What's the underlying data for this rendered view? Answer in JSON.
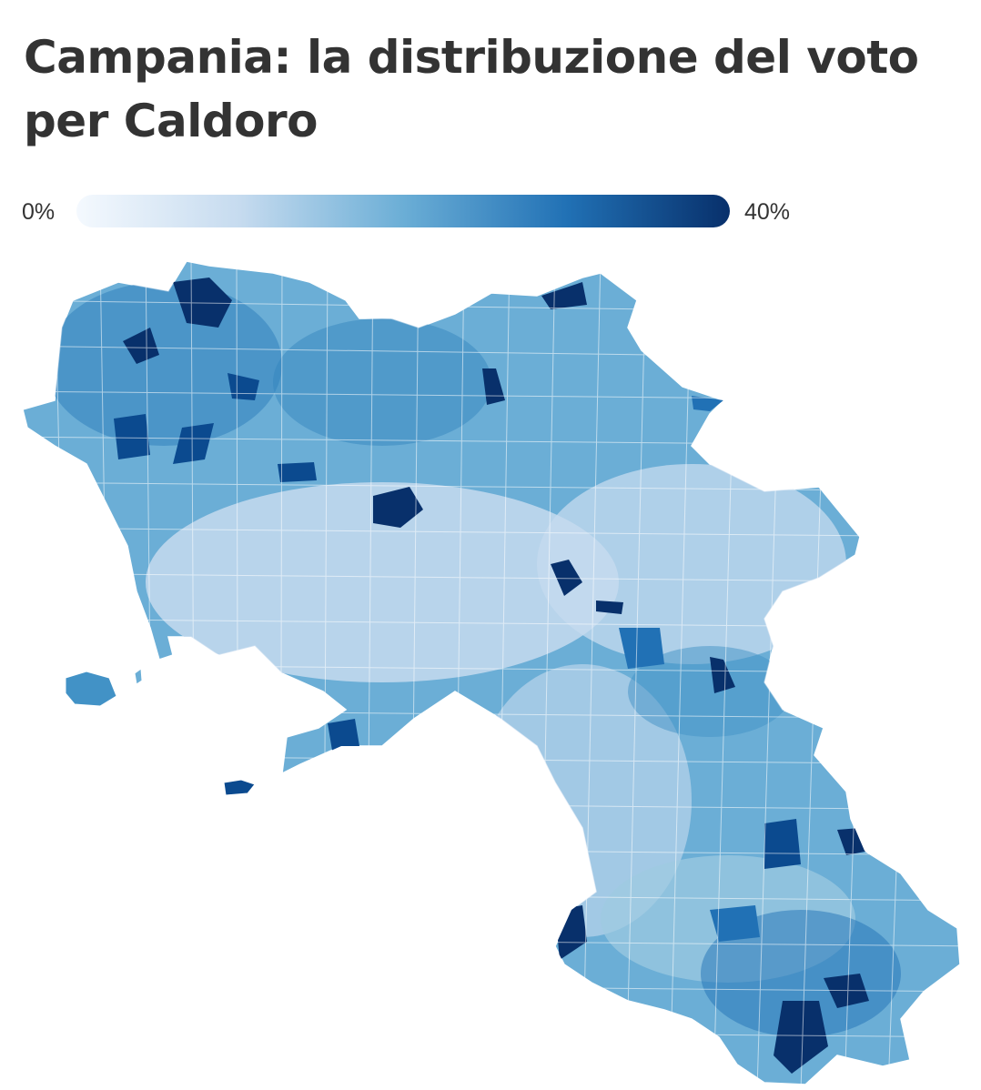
{
  "title": "Campania: la distribuzione del voto per Caldoro",
  "legend": {
    "min_label": "0%",
    "max_label": "40%",
    "scale": [
      "#f4f9fe",
      "#c6dbef",
      "#6baed6",
      "#2171b5",
      "#08306b"
    ]
  },
  "map": {
    "region": "Campania",
    "base_color": "#6baed6",
    "border_color": "#ffffff"
  }
}
